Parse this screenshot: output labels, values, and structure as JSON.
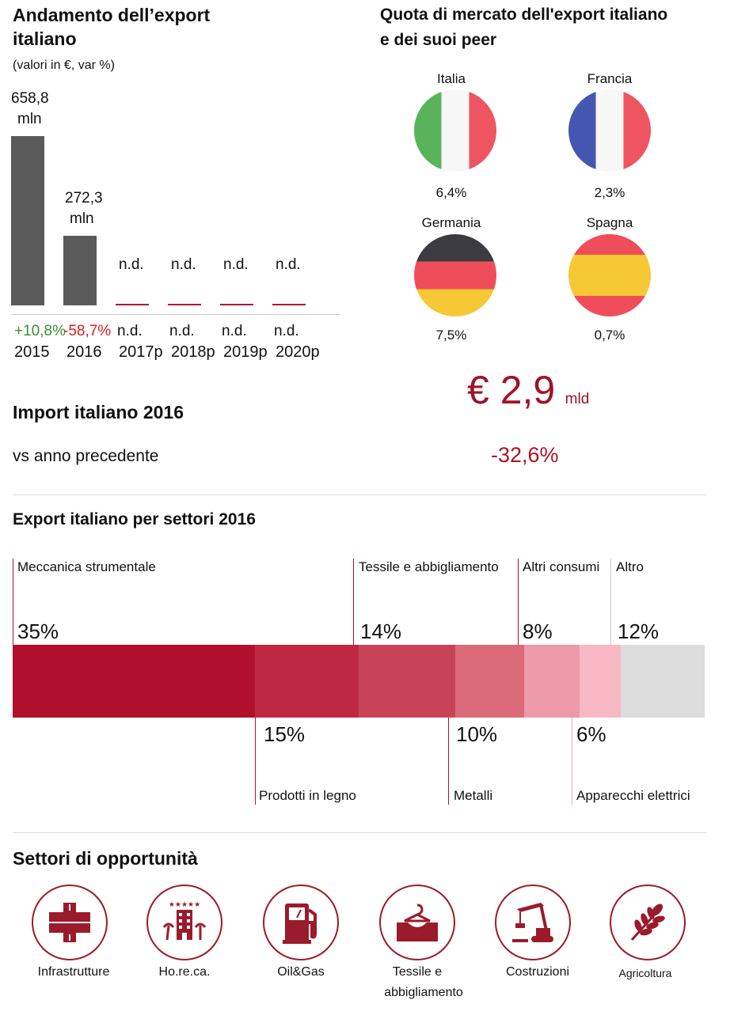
{
  "export_trend": {
    "title_line1": "Andamento dell’export",
    "title_line2": "italiano",
    "subtitle": "(valori in €, var %)",
    "bars": [
      {
        "year": "2015",
        "value_line1": "658,8",
        "value_line2": "mln",
        "change": "+10,8%",
        "change_color": "#3a8f3a"
      },
      {
        "year": "2016",
        "value_line1": "272,3",
        "value_line2": "mln",
        "change": "-58,7%",
        "change_color": "#d42020"
      },
      {
        "year": "2017p",
        "value_line1": "n.d.",
        "change": "n.d."
      },
      {
        "year": "2018p",
        "value_line1": "n.d.",
        "change": "n.d."
      },
      {
        "year": "2019p",
        "value_line1": "n.d.",
        "change": "n.d."
      },
      {
        "year": "2020p",
        "value_line1": "n.d.",
        "change": "n.d."
      }
    ]
  },
  "market_share": {
    "title_line1": "Quota di mercato dell'export italiano",
    "title_line2": "e dei suoi peer",
    "countries": [
      {
        "name": "Italia",
        "value": "6,4%"
      },
      {
        "name": "Francia",
        "value": "2,3%"
      },
      {
        "name": "Germania",
        "value": "7,5%"
      },
      {
        "name": "Spagna",
        "value": "0,7%"
      }
    ]
  },
  "import": {
    "title": "Import italiano 2016",
    "vs_label": "vs anno precedente",
    "amount": "€ 2,9",
    "unit": "mld",
    "change": "-32,6%"
  },
  "sectors": {
    "title": "Export italiano per settori 2016",
    "items": [
      {
        "name": "Meccanica strumentale",
        "pct": "35%",
        "color": "#b0102c"
      },
      {
        "name": "Prodotti in legno",
        "pct": "15%",
        "color": "#be2842"
      },
      {
        "name": "Tessile e abbigliamento",
        "pct": "14%",
        "color": "#c94358"
      },
      {
        "name": "Metalli",
        "pct": "10%",
        "color": "#db6a7b"
      },
      {
        "name": "Altri consumi",
        "pct": "8%",
        "color": "#ec9aa7"
      },
      {
        "name": "Apparecchi elettrici",
        "pct": "6%",
        "color": "#f7b8c3"
      },
      {
        "name": "Altro",
        "pct": "12%",
        "color": "#dcdcdc"
      }
    ]
  },
  "opportunities": {
    "title": "Settori di opportunità",
    "items": [
      {
        "label": "Infrastrutture",
        "icon": "road-icon"
      },
      {
        "label": "Ho.re.ca.",
        "icon": "hotel-icon"
      },
      {
        "label": "Oil&Gas",
        "icon": "fuel-pump-icon"
      },
      {
        "label": "Tessile e",
        "label2": "abbigliamento",
        "icon": "textile-icon"
      },
      {
        "label": "Costruzioni",
        "icon": "crane-icon"
      },
      {
        "label": "Agricoltura",
        "icon": "wheat-icon"
      }
    ]
  },
  "chart_data": [
    {
      "type": "bar",
      "title": "Andamento dell’export italiano",
      "subtitle": "(valori in €, var %)",
      "categories": [
        "2015",
        "2016",
        "2017p",
        "2018p",
        "2019p",
        "2020p"
      ],
      "values": [
        658.8,
        272.3,
        null,
        null,
        null,
        null
      ],
      "unit": "mln",
      "changes": [
        "+10,8%",
        "-58,7%",
        "n.d.",
        "n.d.",
        "n.d.",
        "n.d."
      ]
    },
    {
      "type": "bar",
      "title": "Export italiano per settori 2016",
      "categories": [
        "Meccanica strumentale",
        "Prodotti in legno",
        "Tessile e abbigliamento",
        "Metalli",
        "Altri consumi",
        "Apparecchi elettrici",
        "Altro"
      ],
      "values": [
        35,
        15,
        14,
        10,
        8,
        6,
        12
      ],
      "unit": "%"
    }
  ]
}
